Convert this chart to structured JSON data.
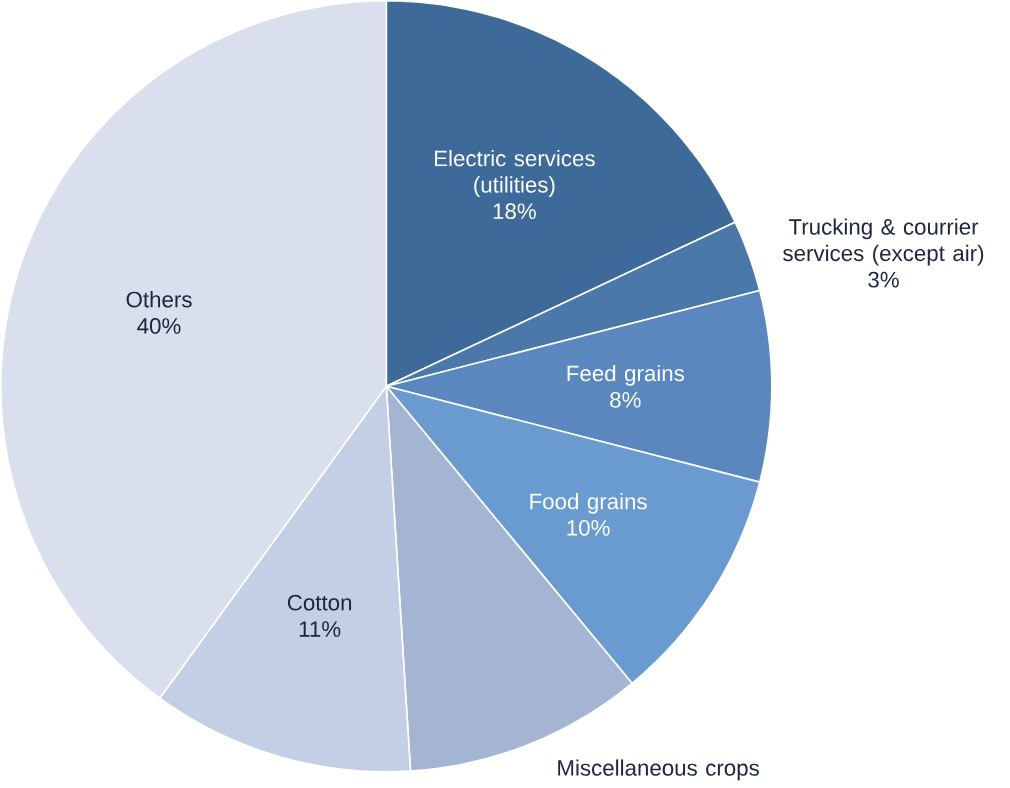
{
  "chart_data": {
    "type": "pie",
    "categories": [
      "Electric services (utilities)",
      "Trucking & courrier services (except air)",
      "Feed grains",
      "Food grains",
      "Miscellaneous crops",
      "Cotton",
      "Others"
    ],
    "values": [
      18,
      3,
      8,
      10,
      10,
      11,
      40
    ],
    "value_labels": [
      "18%",
      "3%",
      "8%",
      "10%",
      null,
      "11%",
      "40%"
    ],
    "colors": [
      "#3d6a99",
      "#4a78a8",
      "#5a87bd",
      "#6a9bd0",
      "#a3b5d3",
      "#c2cfe4",
      "#d9dfec"
    ]
  }
}
